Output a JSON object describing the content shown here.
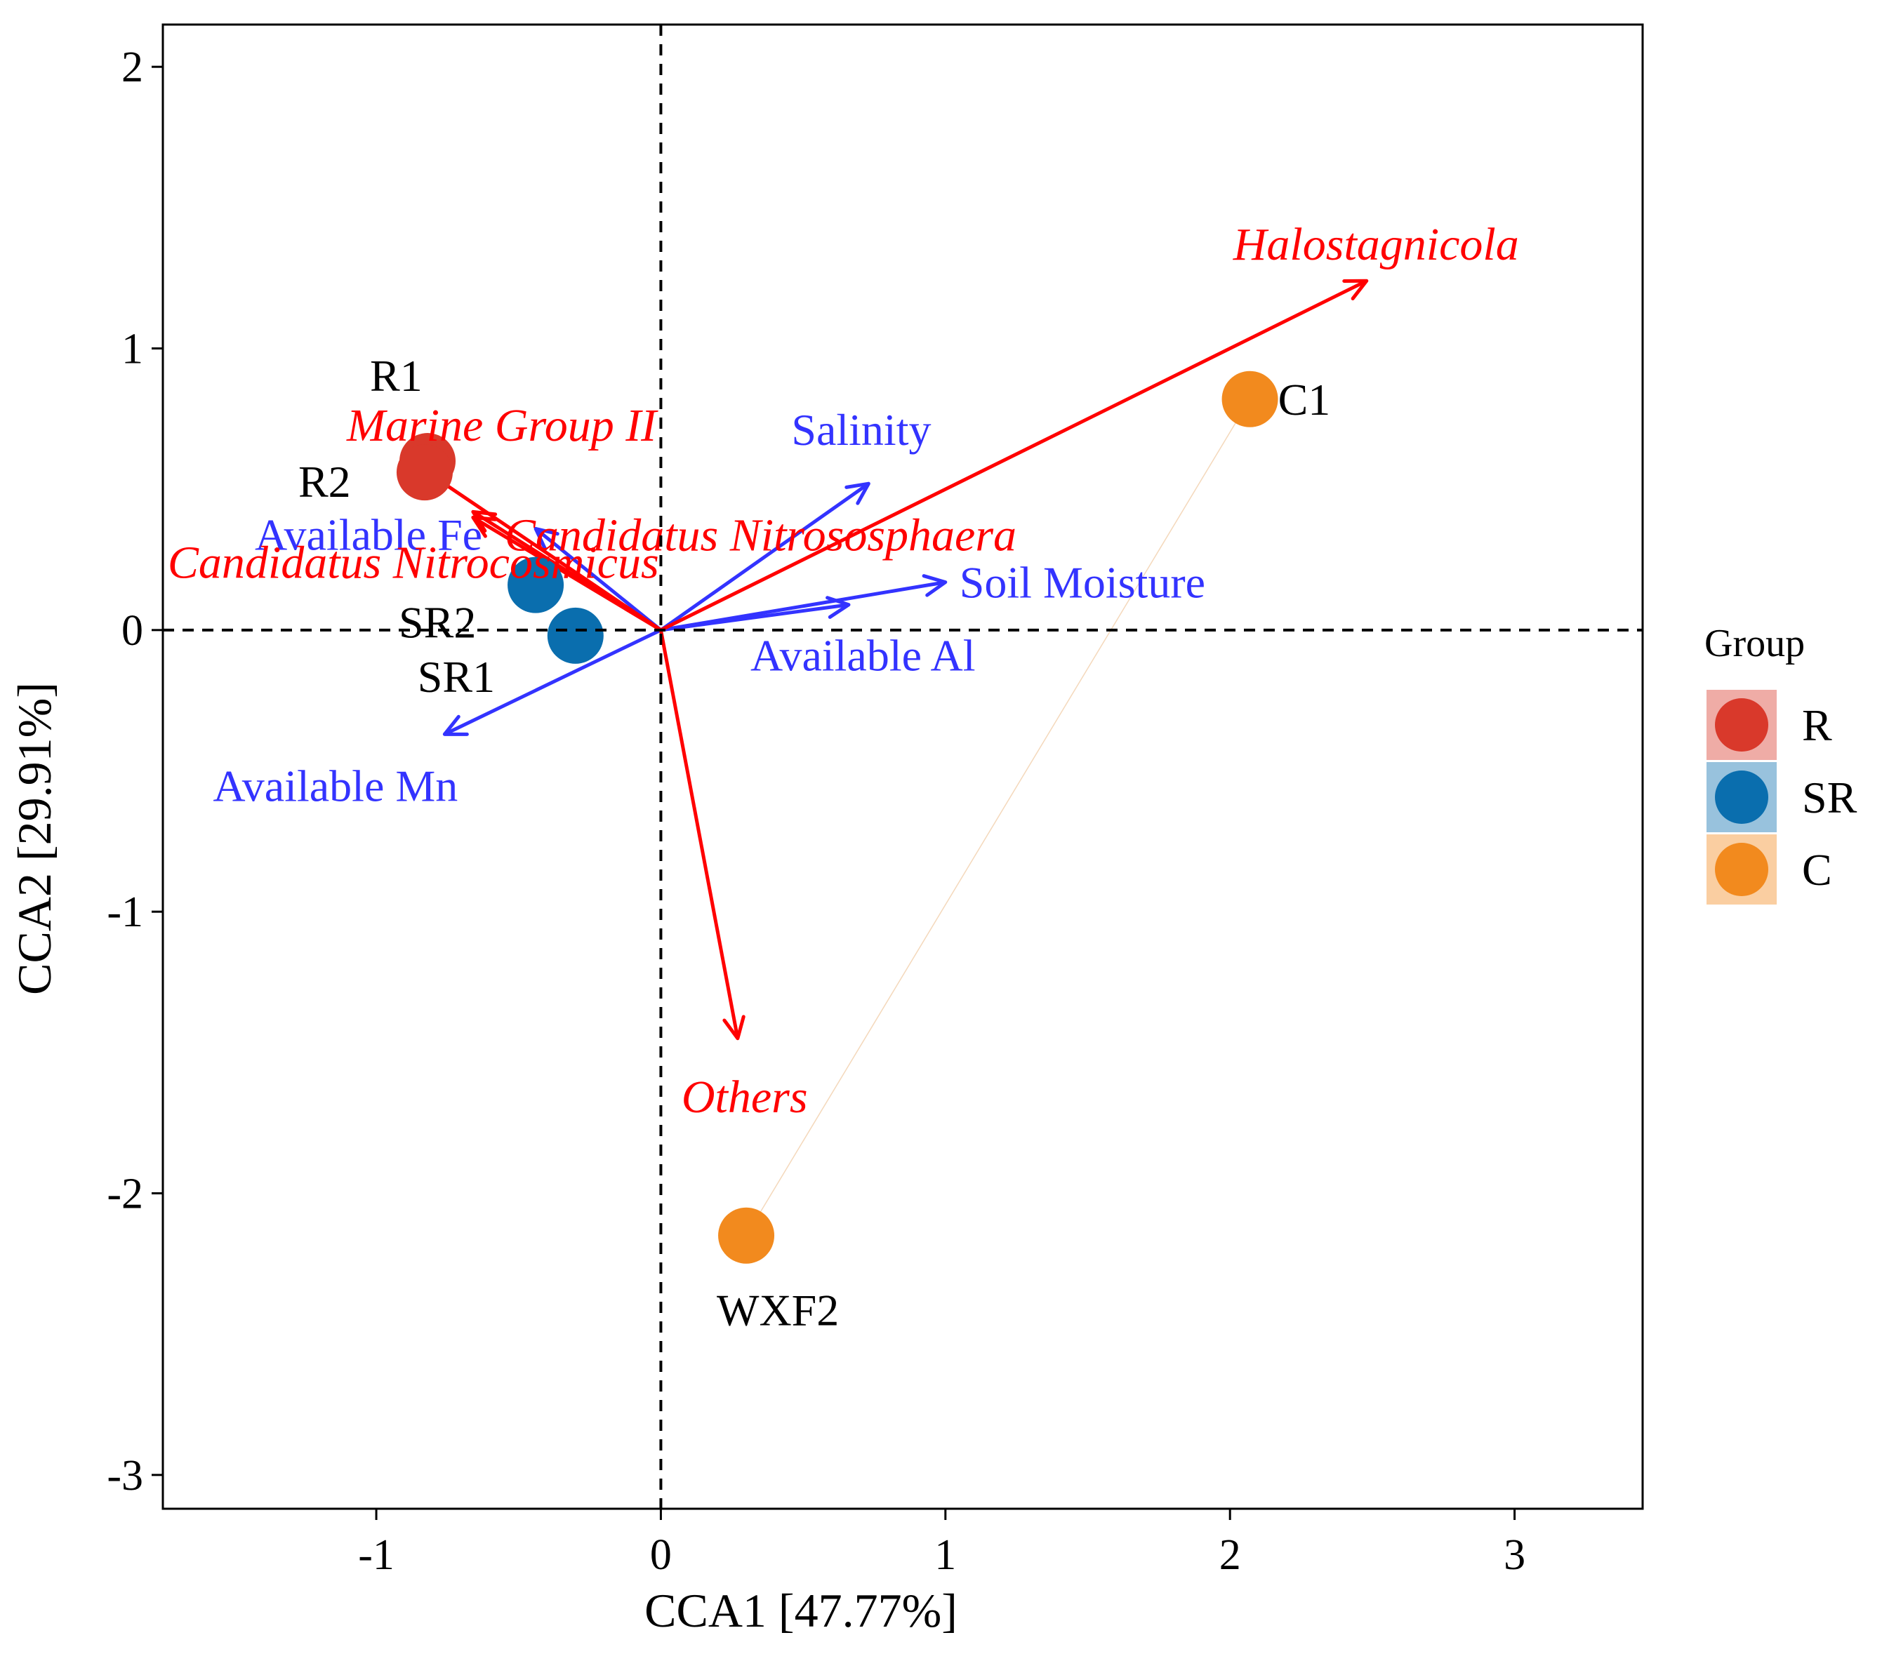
{
  "chart_data": {
    "type": "scatter",
    "title": "",
    "xlabel": "CCA1 [47.77%]",
    "ylabel": "CCA2 [29.91%]",
    "xlim": [
      -1.75,
      3.45
    ],
    "ylim": [
      -3.12,
      2.15
    ],
    "xticks": [
      -1,
      0,
      1,
      2,
      3
    ],
    "yticks": [
      2,
      1,
      0,
      -1,
      -2,
      -3
    ],
    "reference_lines": {
      "x": 0,
      "y": 0,
      "style": "dashed"
    },
    "groups": [
      {
        "name": "R",
        "color": "#D9392B"
      },
      {
        "name": "SR",
        "color": "#0A6EAE"
      },
      {
        "name": "C",
        "color": "#F28A1E"
      }
    ],
    "points": [
      {
        "id": "R1",
        "group": "R",
        "x": -0.82,
        "y": 0.6
      },
      {
        "id": "R2",
        "group": "R",
        "x": -0.83,
        "y": 0.56
      },
      {
        "id": "SR2",
        "group": "SR",
        "x": -0.44,
        "y": 0.16
      },
      {
        "id": "SR1",
        "group": "SR",
        "x": -0.3,
        "y": -0.02
      },
      {
        "id": "C1",
        "group": "C",
        "x": 2.07,
        "y": 0.82
      },
      {
        "id": "WXF2",
        "group": "C",
        "x": 0.3,
        "y": -2.15
      }
    ],
    "taxa_arrows": {
      "color": "#FF0000",
      "items": [
        {
          "name": "Halostagnicola",
          "x": 2.48,
          "y": 1.24
        },
        {
          "name": "Marine Group II",
          "x": -0.82,
          "y": 0.56
        },
        {
          "name": "Candidatus Nitrososphaera",
          "x": -0.66,
          "y": 0.4
        },
        {
          "name": "Candidatus Nitrocosmicus",
          "x": -0.66,
          "y": 0.42
        },
        {
          "name": "Others",
          "x": 0.27,
          "y": -1.45
        }
      ]
    },
    "env_arrows": {
      "color": "#3333FF",
      "items": [
        {
          "name": "Salinity",
          "x": 0.73,
          "y": 0.52
        },
        {
          "name": "Available Fe",
          "x": -0.44,
          "y": 0.36
        },
        {
          "name": "Soil Moisture",
          "x": 1.0,
          "y": 0.17
        },
        {
          "name": "Available Al",
          "x": 0.66,
          "y": 0.09
        },
        {
          "name": "Available Mn",
          "x": -0.76,
          "y": -0.37
        }
      ]
    },
    "legend": {
      "title": "Group",
      "position": "right",
      "entries": [
        "R",
        "SR",
        "C"
      ]
    }
  }
}
